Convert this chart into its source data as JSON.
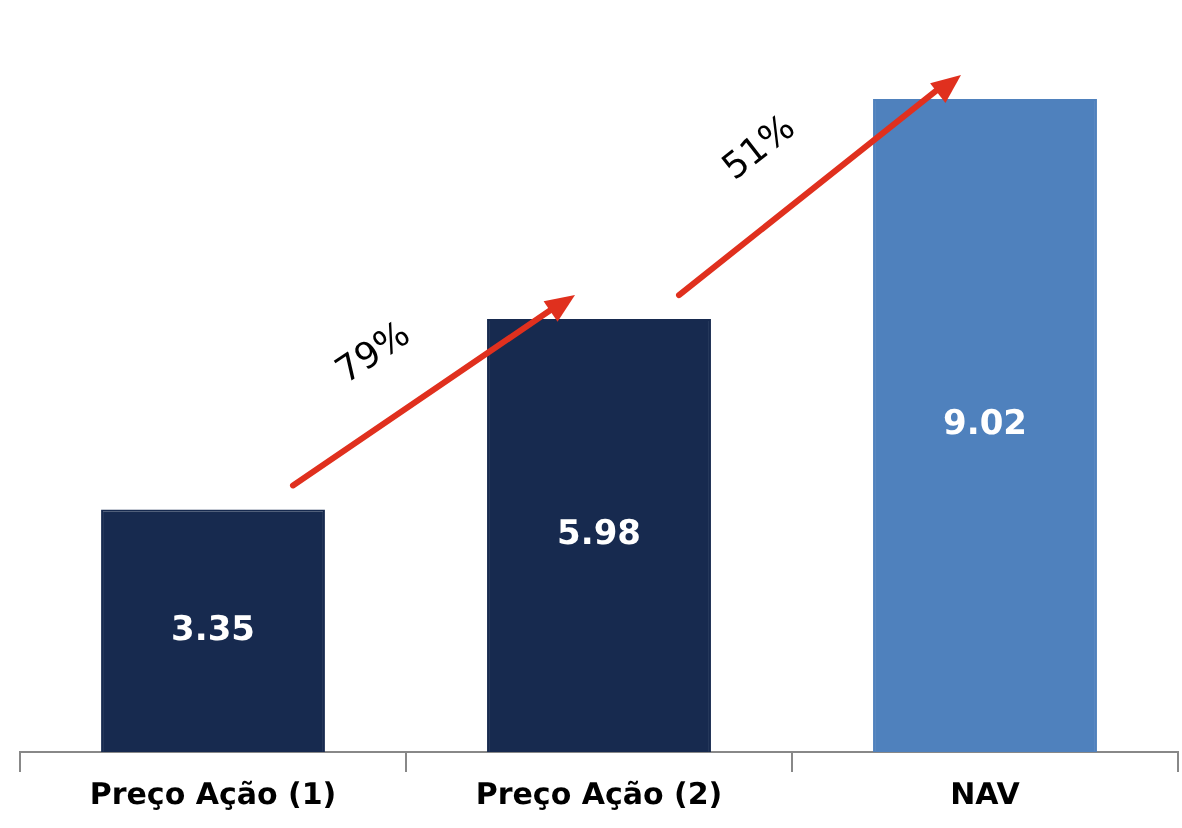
{
  "chart_data": {
    "type": "bar",
    "categories": [
      "Preço Ação (1)",
      "Preço Ação (2)",
      "NAV"
    ],
    "values": [
      3.35,
      5.98,
      9.02
    ],
    "colors": [
      "#172a4f",
      "#172a4f",
      "#4f81bd"
    ],
    "data_labels": true,
    "grid": false,
    "legend": false,
    "annotations": [
      "79%",
      "51%"
    ]
  }
}
